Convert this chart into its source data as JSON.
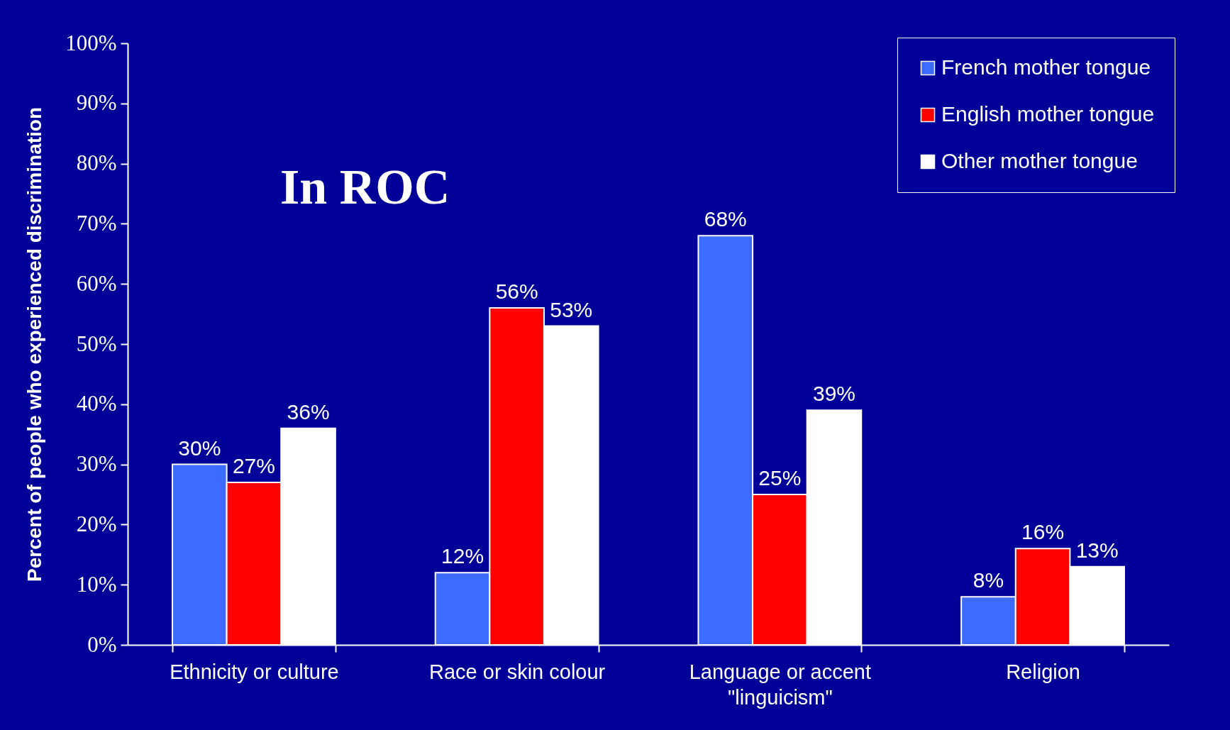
{
  "chart_data": {
    "type": "bar",
    "ylabel": "Percent of people who experienced discrimination",
    "categories": [
      "Ethnicity or culture",
      "Race or skin colour",
      "Language or accent\n\"linguicism\"",
      "Religion"
    ],
    "series": [
      {
        "name": "French mother tongue",
        "color": "#3d6bff",
        "values": [
          30,
          12,
          68,
          8
        ],
        "value_labels": [
          "30%",
          "12%",
          "68%",
          "8%"
        ]
      },
      {
        "name": "English mother tongue",
        "color": "#ff0000",
        "values": [
          27,
          56,
          25,
          16
        ],
        "value_labels": [
          "27%",
          "56%",
          "25%",
          "16%"
        ]
      },
      {
        "name": "Other mother tongue",
        "color": "#ffffff",
        "values": [
          36,
          53,
          39,
          13
        ],
        "value_labels": [
          "36%",
          "53%",
          "39%",
          "13%"
        ]
      }
    ],
    "ylim": [
      0,
      100
    ],
    "yticks": [
      {
        "value": 0,
        "label": "0%"
      },
      {
        "value": 10,
        "label": "10%"
      },
      {
        "value": 20,
        "label": "20%"
      },
      {
        "value": 30,
        "label": "30%"
      },
      {
        "value": 40,
        "label": "40%"
      },
      {
        "value": 50,
        "label": "50%"
      },
      {
        "value": 60,
        "label": "60%"
      },
      {
        "value": 70,
        "label": "70%"
      },
      {
        "value": 80,
        "label": "80%"
      },
      {
        "value": 90,
        "label": "90%"
      },
      {
        "value": 100,
        "label": "100%"
      }
    ],
    "annotations": [
      "In ROC"
    ],
    "legend": "top right",
    "grid": false
  }
}
